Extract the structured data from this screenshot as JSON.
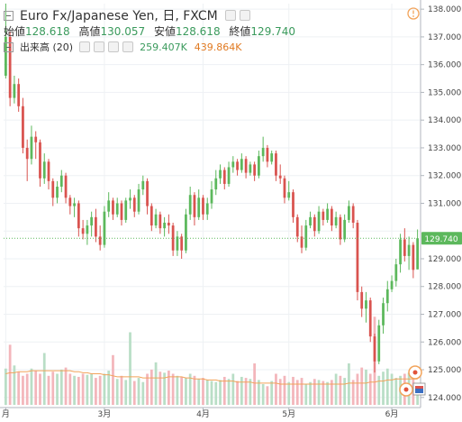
{
  "header": {
    "title": "Euro Fx/Japanese Yen, 日, FXCM",
    "ohlc": [
      {
        "label": "始値",
        "value": "128.618"
      },
      {
        "label": "高値",
        "value": "130.057"
      },
      {
        "label": "安値",
        "value": "128.618"
      },
      {
        "label": "終値",
        "value": "129.740"
      }
    ],
    "volume_label": "出来高 (20)",
    "volume_value": "259.407K",
    "volume_ma_value": "439.864K",
    "alert_icon": "exclamation-circle-icon"
  },
  "colors": {
    "up": "#5cb85c",
    "down": "#d9534f",
    "volume_up": "#b9dec6",
    "volume_down": "#f3b6bb",
    "volume_ma": "#f2a35a",
    "price_line": "#5cb85c",
    "text_up": "#3a9a5c",
    "text_ma": "#e07a22"
  },
  "chart_data": {
    "type": "candlestick",
    "y_axis": {
      "ticks": [
        "138.000",
        "137.000",
        "136.000",
        "135.000",
        "134.000",
        "133.000",
        "132.000",
        "131.000",
        "130.000",
        "129.000",
        "128.000",
        "127.000",
        "126.000",
        "125.000",
        "124.000"
      ],
      "range": [
        123.7,
        138.2
      ]
    },
    "x_axis": {
      "ticks": [
        {
          "label": "月",
          "bar": 0
        },
        {
          "label": "3月",
          "bar": 23
        },
        {
          "label": "4月",
          "bar": 46
        },
        {
          "label": "5月",
          "bar": 66
        },
        {
          "label": "6月",
          "bar": 90
        }
      ]
    },
    "last_price": "129.740",
    "candles": [
      [
        135.6,
        138.2,
        135.5,
        137.0
      ],
      [
        137.0,
        137.2,
        134.5,
        134.8
      ],
      [
        134.8,
        135.6,
        134.6,
        135.3
      ],
      [
        135.3,
        135.5,
        134.3,
        134.5
      ],
      [
        134.5,
        134.8,
        132.8,
        133.0
      ],
      [
        133.0,
        133.3,
        131.8,
        132.6
      ],
      [
        132.6,
        133.8,
        132.4,
        133.4
      ],
      [
        133.4,
        133.6,
        132.6,
        133.2
      ],
      [
        133.2,
        133.3,
        131.6,
        131.9
      ],
      [
        131.9,
        132.8,
        131.7,
        132.5
      ],
      [
        132.5,
        132.6,
        131.5,
        131.8
      ],
      [
        131.8,
        131.9,
        130.9,
        131.2
      ],
      [
        131.2,
        131.8,
        131.0,
        131.6
      ],
      [
        131.6,
        132.2,
        131.4,
        132.0
      ],
      [
        132.0,
        132.1,
        131.0,
        131.2
      ],
      [
        131.2,
        131.3,
        130.6,
        130.9
      ],
      [
        130.9,
        131.2,
        130.5,
        131.0
      ],
      [
        131.0,
        131.1,
        129.8,
        130.1
      ],
      [
        130.1,
        130.4,
        129.7,
        129.9
      ],
      [
        129.9,
        130.4,
        129.5,
        130.2
      ],
      [
        130.2,
        130.7,
        129.8,
        130.5
      ],
      [
        130.5,
        130.8,
        129.6,
        129.8
      ],
      [
        129.8,
        130.2,
        129.3,
        129.5
      ],
      [
        129.5,
        130.9,
        129.4,
        130.7
      ],
      [
        130.7,
        131.4,
        130.5,
        131.1
      ],
      [
        131.1,
        131.2,
        130.4,
        130.6
      ],
      [
        130.6,
        131.2,
        130.5,
        131.0
      ],
      [
        131.0,
        131.1,
        130.2,
        130.4
      ],
      [
        130.4,
        131.2,
        130.3,
        131.1
      ],
      [
        131.1,
        131.5,
        130.8,
        131.2
      ],
      [
        131.2,
        131.3,
        130.5,
        130.7
      ],
      [
        130.7,
        131.7,
        130.6,
        131.5
      ],
      [
        131.5,
        132.0,
        131.3,
        131.8
      ],
      [
        131.8,
        131.9,
        130.6,
        130.9
      ],
      [
        130.9,
        131.0,
        130.0,
        130.2
      ],
      [
        130.2,
        130.8,
        130.1,
        130.6
      ],
      [
        130.6,
        130.7,
        129.9,
        130.1
      ],
      [
        130.1,
        130.5,
        129.8,
        130.3
      ],
      [
        130.3,
        130.6,
        129.9,
        130.2
      ],
      [
        130.2,
        130.3,
        129.1,
        129.3
      ],
      [
        129.3,
        130.0,
        129.1,
        129.8
      ],
      [
        129.8,
        129.9,
        129.0,
        129.3
      ],
      [
        129.3,
        130.8,
        129.2,
        130.6
      ],
      [
        130.6,
        131.6,
        130.4,
        131.3
      ],
      [
        131.3,
        131.4,
        130.2,
        130.5
      ],
      [
        130.5,
        131.5,
        130.4,
        131.2
      ],
      [
        131.2,
        131.3,
        130.4,
        130.6
      ],
      [
        130.6,
        131.2,
        130.4,
        131.0
      ],
      [
        131.0,
        131.8,
        130.8,
        131.5
      ],
      [
        131.5,
        132.2,
        131.3,
        131.9
      ],
      [
        131.9,
        132.4,
        131.7,
        132.2
      ],
      [
        132.2,
        132.3,
        131.5,
        131.7
      ],
      [
        131.7,
        132.5,
        131.6,
        132.3
      ],
      [
        132.3,
        132.7,
        132.1,
        132.5
      ],
      [
        132.5,
        132.6,
        132.0,
        132.2
      ],
      [
        132.2,
        132.8,
        132.1,
        132.6
      ],
      [
        132.6,
        132.7,
        131.9,
        132.1
      ],
      [
        132.1,
        132.5,
        132.0,
        132.4
      ],
      [
        132.4,
        132.5,
        131.8,
        132.0
      ],
      [
        132.0,
        132.9,
        131.9,
        132.7
      ],
      [
        132.7,
        133.4,
        132.5,
        133.0
      ],
      [
        133.0,
        133.1,
        132.3,
        132.5
      ],
      [
        132.5,
        132.9,
        132.4,
        132.8
      ],
      [
        132.8,
        132.9,
        131.8,
        132.0
      ],
      [
        132.0,
        132.4,
        131.7,
        131.9
      ],
      [
        131.9,
        132.0,
        131.0,
        131.2
      ],
      [
        131.2,
        131.8,
        131.1,
        131.4
      ],
      [
        131.4,
        131.5,
        130.3,
        130.5
      ],
      [
        130.5,
        130.6,
        129.6,
        129.8
      ],
      [
        129.8,
        130.2,
        129.2,
        129.4
      ],
      [
        129.4,
        130.4,
        129.3,
        130.2
      ],
      [
        130.2,
        130.7,
        130.1,
        130.5
      ],
      [
        130.5,
        130.6,
        129.8,
        130.0
      ],
      [
        130.0,
        130.9,
        129.9,
        130.7
      ],
      [
        130.7,
        130.8,
        130.2,
        130.4
      ],
      [
        130.4,
        131.0,
        130.3,
        130.8
      ],
      [
        130.8,
        130.9,
        130.0,
        130.2
      ],
      [
        130.2,
        130.7,
        130.1,
        130.5
      ],
      [
        130.5,
        130.6,
        129.5,
        129.7
      ],
      [
        129.7,
        130.6,
        129.6,
        130.4
      ],
      [
        130.4,
        131.1,
        130.3,
        130.9
      ],
      [
        130.9,
        131.0,
        130.1,
        130.3
      ],
      [
        130.3,
        130.4,
        127.5,
        127.8
      ],
      [
        127.8,
        128.0,
        126.9,
        127.2
      ],
      [
        127.2,
        127.8,
        126.7,
        127.5
      ],
      [
        127.5,
        127.6,
        126.0,
        126.2
      ],
      [
        126.2,
        126.3,
        124.9,
        125.3
      ],
      [
        125.3,
        126.8,
        125.2,
        126.6
      ],
      [
        126.6,
        127.6,
        126.3,
        127.4
      ],
      [
        127.4,
        128.2,
        127.1,
        127.9
      ],
      [
        127.9,
        128.4,
        127.8,
        128.2
      ],
      [
        128.2,
        129.0,
        128.0,
        128.8
      ],
      [
        128.8,
        129.9,
        128.5,
        129.7
      ],
      [
        129.7,
        130.1,
        128.9,
        129.1
      ],
      [
        129.1,
        129.8,
        128.6,
        129.5
      ],
      [
        129.5,
        129.6,
        128.3,
        128.6
      ],
      [
        128.618,
        130.057,
        128.618,
        129.74
      ]
    ],
    "volume_heights": [
      0.35,
      0.3,
      0.38,
      0.32,
      0.28,
      0.3,
      0.35,
      0.33,
      0.3,
      0.34,
      0.28,
      0.32,
      0.3,
      0.34,
      0.36,
      0.3,
      0.28,
      0.27,
      0.3,
      0.29,
      0.3,
      0.26,
      0.28,
      0.3,
      0.33,
      0.26,
      0.25,
      0.28,
      0.24,
      0.27,
      0.23,
      0.26,
      0.22,
      0.3,
      0.34,
      0.3,
      0.32,
      0.31,
      0.33,
      0.3,
      0.28,
      0.27,
      0.26,
      0.3,
      0.28,
      0.25,
      0.26,
      0.24,
      0.23,
      0.22,
      0.24,
      0.27,
      0.25,
      0.3,
      0.23,
      0.27,
      0.26,
      0.25,
      0.22,
      0.24,
      0.2,
      0.18,
      0.23,
      0.3,
      0.25,
      0.28,
      0.22,
      0.27,
      0.24,
      0.26,
      0.2,
      0.22,
      0.25,
      0.24,
      0.23,
      0.22,
      0.24,
      0.3,
      0.28,
      0.26,
      0.22,
      0.24,
      0.3,
      0.36,
      0.34,
      0.3,
      0.26,
      0.28,
      0.32,
      0.35,
      0.3,
      0.26,
      0.28,
      0.3,
      0.31,
      0.32,
      0.2
    ],
    "volume_spikes": {
      "1": 0.58,
      "9": 0.5,
      "25": 0.48,
      "29": 0.7,
      "35": 0.41,
      "58": 0.4,
      "80": 0.4,
      "86": 0.85
    },
    "volume_ma": [
      0.3,
      0.31,
      0.31,
      0.32,
      0.32,
      0.32,
      0.33,
      0.33,
      0.33,
      0.33,
      0.33,
      0.33,
      0.33,
      0.33,
      0.33,
      0.33,
      0.32,
      0.32,
      0.31,
      0.31,
      0.3,
      0.3,
      0.3,
      0.29,
      0.29,
      0.28,
      0.27,
      0.27,
      0.27,
      0.27,
      0.27,
      0.27,
      0.26,
      0.26,
      0.26,
      0.26,
      0.26,
      0.26,
      0.27,
      0.27,
      0.27,
      0.27,
      0.26,
      0.26,
      0.25,
      0.25,
      0.25,
      0.24,
      0.24,
      0.24,
      0.23,
      0.23,
      0.23,
      0.23,
      0.22,
      0.22,
      0.22,
      0.22,
      0.21,
      0.21,
      0.21,
      0.21,
      0.21,
      0.21,
      0.2,
      0.2,
      0.2,
      0.2,
      0.2,
      0.2,
      0.2,
      0.2,
      0.2,
      0.2,
      0.2,
      0.2,
      0.2,
      0.2,
      0.2,
      0.2,
      0.21,
      0.21,
      0.21,
      0.21,
      0.21,
      0.22,
      0.22,
      0.23,
      0.23,
      0.24,
      0.24,
      0.25,
      0.25,
      0.25,
      0.25,
      0.25,
      0.25
    ]
  }
}
